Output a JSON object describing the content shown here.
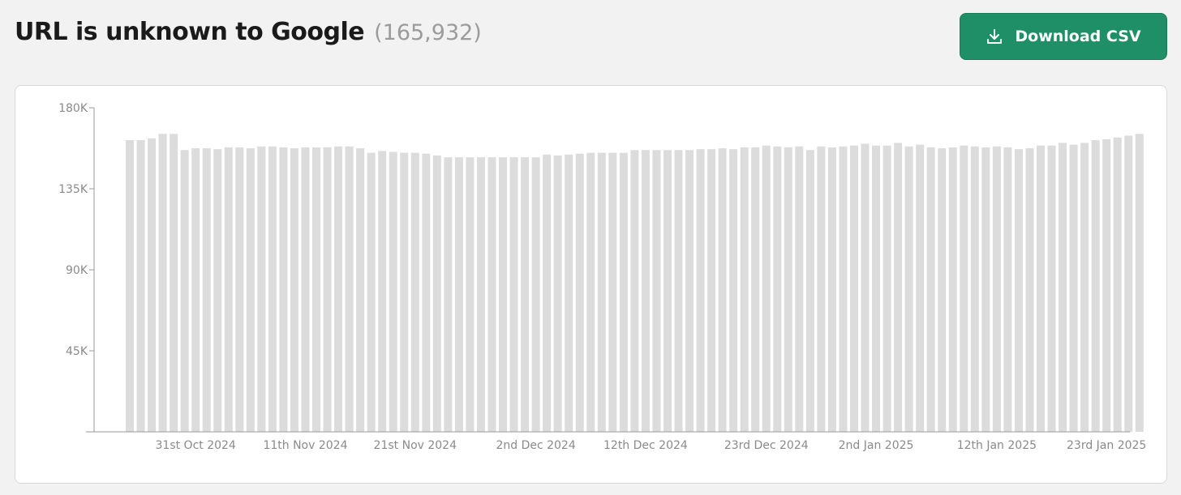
{
  "header": {
    "title": "URL is unknown to Google",
    "count": "(165,932)"
  },
  "toolbar": {
    "download_label": "Download CSV",
    "download_icon": "download-icon"
  },
  "colors": {
    "button": "#1f8f67",
    "bar": "#dcdcdc",
    "axis": "#9a9a9a"
  },
  "chart_data": {
    "type": "bar",
    "title": "",
    "xlabel": "",
    "ylabel": "",
    "ylim": [
      0,
      180000
    ],
    "yticks": [
      {
        "value": 45000,
        "label": "45K"
      },
      {
        "value": 90000,
        "label": "90K"
      },
      {
        "value": 135000,
        "label": "135K"
      },
      {
        "value": 180000,
        "label": "180K"
      }
    ],
    "xtick_labels": [
      {
        "index": 6,
        "label": "31st Oct 2024"
      },
      {
        "index": 16,
        "label": "11th Nov 2024"
      },
      {
        "index": 26,
        "label": "21st Nov 2024"
      },
      {
        "index": 37,
        "label": "2nd Dec 2024"
      },
      {
        "index": 47,
        "label": "12th Dec 2024"
      },
      {
        "index": 58,
        "label": "23rd Dec 2024"
      },
      {
        "index": 68,
        "label": "2nd Jan 2025"
      },
      {
        "index": 79,
        "label": "12th Jan 2025"
      },
      {
        "index": 89,
        "label": "23rd Jan 2025"
      }
    ],
    "grid": false,
    "legend": "none",
    "values": [
      162000,
      162000,
      163000,
      165500,
      165500,
      156500,
      157500,
      157500,
      157000,
      158000,
      158000,
      157500,
      158500,
      158500,
      158000,
      157500,
      158000,
      158000,
      158000,
      158500,
      158500,
      157500,
      155000,
      156000,
      155500,
      155000,
      155000,
      154500,
      153500,
      152500,
      152500,
      152500,
      152500,
      152500,
      152500,
      152500,
      152500,
      152500,
      154000,
      153500,
      154000,
      154500,
      155000,
      155000,
      155000,
      155000,
      156500,
      156500,
      156500,
      156500,
      156500,
      156500,
      157000,
      157000,
      157500,
      157000,
      158000,
      158000,
      159000,
      158500,
      158000,
      158500,
      156500,
      158500,
      158000,
      158500,
      159000,
      160000,
      159000,
      159000,
      160500,
      158500,
      159500,
      158000,
      157500,
      158000,
      159000,
      158500,
      158000,
      158500,
      158000,
      157000,
      157500,
      159000,
      159000,
      160500,
      159500,
      160500,
      162000,
      162500,
      163500,
      164500,
      165500
    ]
  }
}
